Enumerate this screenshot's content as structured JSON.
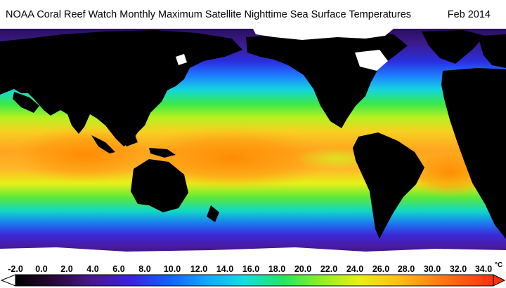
{
  "title": "NOAA Coral Reef Watch Monthly Maximum Satellite Nighttime Sea Surface Temperatures",
  "date": "Feb 2014",
  "legend": {
    "ticks": [
      "-2.0",
      "0.0",
      "2.0",
      "4.0",
      "6.0",
      "8.0",
      "10.0",
      "12.0",
      "14.0",
      "16.0",
      "18.0",
      "20.0",
      "22.0",
      "24.0",
      "26.0",
      "28.0",
      "30.0",
      "32.0",
      "34.0"
    ],
    "unit": "°C"
  },
  "colors": {
    "land": "#000000",
    "ice": "#ffffff",
    "cold": "#3a1a78",
    "warm": "#ff7a00"
  }
}
